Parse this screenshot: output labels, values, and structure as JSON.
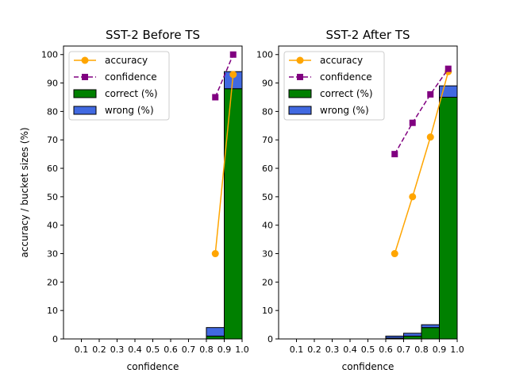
{
  "chart_data": [
    {
      "type": "bar",
      "title": "SST-2 Before TS",
      "xlabel": "confidence",
      "ylabel": "accuracy / bucket sizes (%)",
      "xlim": [
        0.0,
        1.0
      ],
      "ylim": [
        0,
        103
      ],
      "xticks": [
        "0.1",
        "0.2",
        "0.3",
        "0.4",
        "0.5",
        "0.6",
        "0.7",
        "0.8",
        "0.9",
        "1.0"
      ],
      "yticks": [
        "0",
        "10",
        "20",
        "30",
        "40",
        "50",
        "60",
        "70",
        "80",
        "90",
        "100"
      ],
      "legend": [
        "accuracy",
        "confidence",
        "correct (%)",
        "wrong (%)"
      ],
      "bins": [
        [
          0.8,
          0.9
        ],
        [
          0.9,
          1.0
        ]
      ],
      "correct": [
        1,
        88
      ],
      "wrong": [
        3,
        6
      ],
      "accuracy": {
        "x": [
          0.85,
          0.95
        ],
        "y": [
          30,
          93
        ]
      },
      "confidence": {
        "x": [
          0.85,
          0.95
        ],
        "y": [
          85,
          100
        ]
      }
    },
    {
      "type": "bar",
      "title": "SST-2 After TS",
      "xlabel": "confidence",
      "ylabel": "",
      "xlim": [
        0.0,
        1.0
      ],
      "ylim": [
        0,
        103
      ],
      "xticks": [
        "0.1",
        "0.2",
        "0.3",
        "0.4",
        "0.5",
        "0.6",
        "0.7",
        "0.8",
        "0.9",
        "1.0"
      ],
      "yticks": [
        "0",
        "10",
        "20",
        "30",
        "40",
        "50",
        "60",
        "70",
        "80",
        "90",
        "100"
      ],
      "legend": [
        "accuracy",
        "confidence",
        "correct (%)",
        "wrong (%)"
      ],
      "bins": [
        [
          0.6,
          0.7
        ],
        [
          0.7,
          0.8
        ],
        [
          0.8,
          0.9
        ],
        [
          0.9,
          1.0
        ]
      ],
      "correct": [
        0.3,
        1,
        4,
        85
      ],
      "wrong": [
        0.7,
        1,
        1,
        4
      ],
      "accuracy": {
        "x": [
          0.65,
          0.75,
          0.85,
          0.95
        ],
        "y": [
          30,
          50,
          71,
          94
        ]
      },
      "confidence": {
        "x": [
          0.65,
          0.75,
          0.85,
          0.95
        ],
        "y": [
          65,
          76,
          86,
          95
        ]
      }
    }
  ],
  "colors": {
    "accuracy": "#ffa500",
    "confidence": "#800080",
    "correct": "#008000",
    "wrong": "#4169e1",
    "edge": "#000000"
  }
}
